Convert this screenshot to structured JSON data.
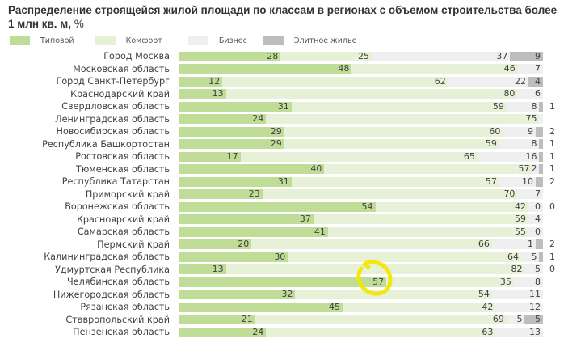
{
  "title": {
    "main": "Распределение строящейся жилой площади по классам в регионах с объемом строительства более 1 млн кв. м,",
    "unit": "%"
  },
  "chart_data": {
    "type": "bar",
    "orientation": "horizontal",
    "stacked": true,
    "title": "Распределение строящейся жилой площади по классам в регионах с объемом строительства более 1 млн кв. м, %",
    "xlabel": "",
    "ylabel": "",
    "xlim": [
      0,
      100
    ],
    "grid": false,
    "legend_position": "top-left",
    "categories": [
      "Город Москва",
      "Московская область",
      "Город Санкт-Петербург",
      "Краснодарский край",
      "Свердловская область",
      "Ленинградская область",
      "Новосибирская область",
      "Республика Башкортостан",
      "Ростовская область",
      "Тюменская область",
      "Республика Татарстан",
      "Приморский край",
      "Воронежская область",
      "Красноярский край",
      "Самарская область",
      "Пермский край",
      "Калининградская область",
      "Удмуртская Республика",
      "Челябинская область",
      "Нижегородская область",
      "Рязанская область",
      "Ставропольский край",
      "Пензенская область"
    ],
    "series": [
      {
        "name": "Типовой",
        "color": "#c0dd98",
        "values": [
          28,
          48,
          12,
          13,
          31,
          24,
          29,
          29,
          17,
          40,
          31,
          23,
          54,
          37,
          41,
          20,
          30,
          13,
          57,
          32,
          45,
          21,
          24
        ]
      },
      {
        "name": "Комфорт",
        "color": "#e6f1d8",
        "values": [
          25,
          46,
          62,
          80,
          59,
          75,
          60,
          59,
          65,
          57,
          57,
          70,
          42,
          59,
          55,
          66,
          64,
          82,
          35,
          54,
          42,
          69,
          63
        ]
      },
      {
        "name": "Бизнес",
        "color": "#efefef",
        "values": [
          37,
          7,
          22,
          6,
          8,
          null,
          9,
          8,
          16,
          2,
          10,
          7,
          0,
          4,
          0,
          1,
          5,
          5,
          8,
          11,
          12,
          5,
          13
        ]
      },
      {
        "name": "Элитное жилье",
        "color": "#bdbdbd",
        "values": [
          9,
          null,
          4,
          null,
          1,
          null,
          2,
          1,
          1,
          1,
          2,
          null,
          0,
          null,
          null,
          2,
          1,
          0,
          null,
          null,
          null,
          5,
          null
        ]
      }
    ],
    "annotation": {
      "type": "hand-drawn circle",
      "color": "#f2e600",
      "target": "Челябинская область — Типовой 57"
    }
  }
}
